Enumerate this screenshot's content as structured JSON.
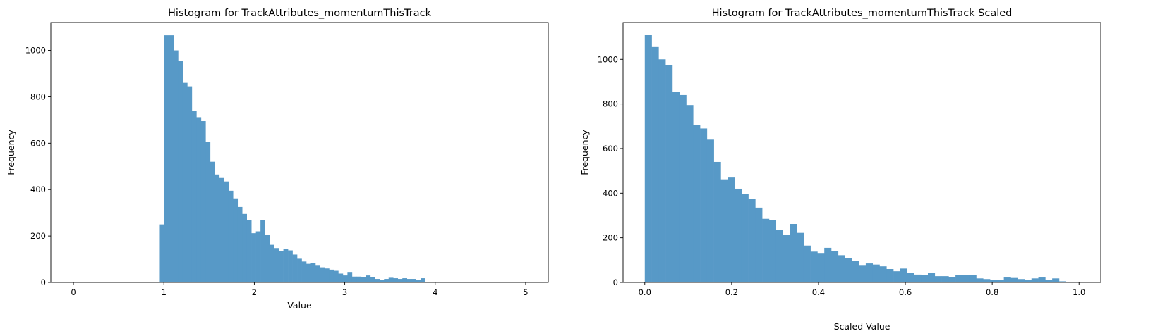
{
  "bar_color": "#5799c7",
  "chart_data": [
    {
      "type": "bar",
      "title": "Histogram for TrackAttributes_momentumThisTrack",
      "xlabel": "Value",
      "ylabel": "Frequency",
      "xlim": [
        -0.25,
        5.25
      ],
      "ylim": [
        0,
        1120
      ],
      "xticks": [
        0,
        1,
        2,
        3,
        4,
        5
      ],
      "xtick_labels": [
        "0",
        "1",
        "2",
        "3",
        "4",
        "5"
      ],
      "yticks": [
        0,
        200,
        400,
        600,
        800,
        1000
      ],
      "ytick_labels": [
        "0",
        "200",
        "400",
        "600",
        "800",
        "1000"
      ],
      "bin_start": 0.955,
      "bin_width": 0.0506,
      "values": [
        250,
        1065,
        1065,
        1000,
        955,
        860,
        845,
        738,
        712,
        695,
        605,
        520,
        465,
        450,
        435,
        395,
        362,
        325,
        295,
        268,
        212,
        220,
        268,
        205,
        162,
        148,
        135,
        145,
        138,
        120,
        102,
        90,
        80,
        85,
        75,
        65,
        60,
        55,
        50,
        38,
        30,
        45,
        25,
        25,
        22,
        30,
        22,
        15,
        10,
        15,
        20,
        18,
        15,
        18,
        15,
        15,
        10,
        18
      ]
    },
    {
      "type": "bar",
      "title": "Histogram for TrackAttributes_momentumThisTrack Scaled",
      "xlabel": "Scaled Value",
      "ylabel": "Frequency",
      "xlim": [
        -0.05,
        1.05
      ],
      "ylim": [
        0,
        1165
      ],
      "xticks": [
        0.0,
        0.2,
        0.4,
        0.6,
        0.8,
        1.0
      ],
      "xtick_labels": [
        "0.0",
        "0.2",
        "0.4",
        "0.6",
        "0.8",
        "1.0"
      ],
      "yticks": [
        0,
        200,
        400,
        600,
        800,
        1000
      ],
      "ytick_labels": [
        "0",
        "200",
        "400",
        "600",
        "800",
        "1000"
      ],
      "bin_start": 0.0,
      "bin_width": 0.0159,
      "values": [
        1110,
        1055,
        1000,
        975,
        855,
        840,
        795,
        705,
        690,
        640,
        540,
        462,
        470,
        420,
        395,
        375,
        335,
        285,
        280,
        235,
        212,
        262,
        222,
        165,
        138,
        132,
        155,
        140,
        122,
        108,
        95,
        78,
        85,
        80,
        72,
        60,
        50,
        62,
        42,
        35,
        32,
        42,
        28,
        28,
        25,
        32,
        32,
        32,
        18,
        15,
        12,
        12,
        22,
        20,
        15,
        12,
        18,
        22,
        10,
        18,
        5
      ]
    }
  ]
}
